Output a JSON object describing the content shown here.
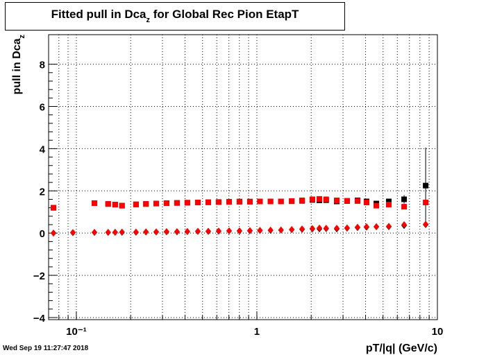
{
  "chart_data": {
    "type": "scatter",
    "title": {
      "main": "Fitted pull in Dca",
      "subscript": "z",
      "rest": " for Global Rec Pion EtapT"
    },
    "ylabel": {
      "main": "pull in Dca",
      "subscript": "z"
    },
    "xlabel": "pT/|q| (GeV/c)",
    "timestamp": "Wed Sep 19 11:27:47 2018",
    "xlog": true,
    "grid": true,
    "xlim": [
      0.0702,
      10
    ],
    "ylim": [
      -4.1,
      9.4
    ],
    "xticks": [
      {
        "value": 0.1,
        "label": "10⁻¹"
      },
      1,
      10
    ],
    "xminorticks": [
      0.08,
      0.09,
      0.2,
      0.3,
      0.4,
      0.5,
      0.6,
      0.7,
      0.8,
      0.9,
      2,
      3,
      4,
      5,
      6,
      7,
      8,
      9
    ],
    "yticks": [
      {
        "value": -4,
        "label": "−4"
      },
      {
        "value": -2,
        "label": "−2"
      },
      0,
      2,
      4,
      6,
      8
    ],
    "x": [
      0.0747,
      0.0957,
      0.126,
      0.15,
      0.164,
      0.179,
      0.214,
      0.243,
      0.277,
      0.316,
      0.361,
      0.412,
      0.471,
      0.538,
      0.614,
      0.702,
      0.801,
      0.915,
      1.04,
      1.19,
      1.36,
      1.56,
      1.78,
      2.03,
      2.22,
      2.42,
      2.77,
      3.16,
      3.61,
      4.05,
      4.59,
      5.38,
      6.54,
      8.61
    ],
    "series": [
      {
        "color": "#000000",
        "marker": "square",
        "values": [
          1.2,
          null,
          1.42,
          1.38,
          1.35,
          1.3,
          1.36,
          1.38,
          1.4,
          1.42,
          1.43,
          1.44,
          1.45,
          1.46,
          1.47,
          1.48,
          1.49,
          1.49,
          1.5,
          1.5,
          1.5,
          1.51,
          1.53,
          1.57,
          1.55,
          1.56,
          1.5,
          1.52,
          1.55,
          1.5,
          1.4,
          1.5,
          1.6,
          2.25
        ],
        "errors": [
          0.05,
          null,
          0.04,
          0.03,
          0.03,
          0.03,
          0.02,
          0.02,
          0.02,
          0.02,
          0.02,
          0.02,
          0.02,
          0.02,
          0.02,
          0.02,
          0.02,
          0.02,
          0.02,
          0.02,
          0.02,
          0.03,
          0.03,
          0.04,
          0.04,
          0.05,
          0.05,
          0.06,
          0.07,
          0.08,
          0.1,
          0.12,
          0.2,
          1.8
        ]
      },
      {
        "color": "#000000",
        "marker": "diamond",
        "values": [
          0.0,
          0.02,
          0.03,
          0.03,
          0.04,
          0.04,
          0.04,
          0.05,
          0.05,
          0.06,
          0.06,
          0.07,
          0.08,
          0.08,
          0.09,
          0.1,
          0.1,
          0.11,
          0.12,
          0.13,
          0.14,
          0.16,
          0.18,
          0.2,
          0.2,
          0.21,
          0.2,
          0.23,
          0.26,
          0.28,
          0.3,
          0.3,
          0.36,
          0.4
        ]
      },
      {
        "color": "#ff0000",
        "marker": "square",
        "values": [
          1.2,
          null,
          1.42,
          1.38,
          1.35,
          1.3,
          1.36,
          1.38,
          1.4,
          1.42,
          1.43,
          1.44,
          1.45,
          1.46,
          1.47,
          1.48,
          1.49,
          1.49,
          1.5,
          1.5,
          1.5,
          1.52,
          1.55,
          1.6,
          1.62,
          1.6,
          1.55,
          1.53,
          1.52,
          1.45,
          1.3,
          1.35,
          1.25,
          1.45
        ]
      },
      {
        "color": "#ff0000",
        "marker": "diamond",
        "values": [
          0.0,
          0.03,
          0.04,
          0.04,
          0.04,
          0.05,
          0.05,
          0.06,
          0.06,
          0.07,
          0.07,
          0.08,
          0.09,
          0.09,
          0.1,
          0.11,
          0.11,
          0.12,
          0.13,
          0.14,
          0.15,
          0.17,
          0.2,
          0.22,
          0.24,
          0.23,
          0.23,
          0.25,
          0.28,
          0.3,
          0.3,
          0.32,
          0.4,
          0.42
        ]
      }
    ]
  }
}
